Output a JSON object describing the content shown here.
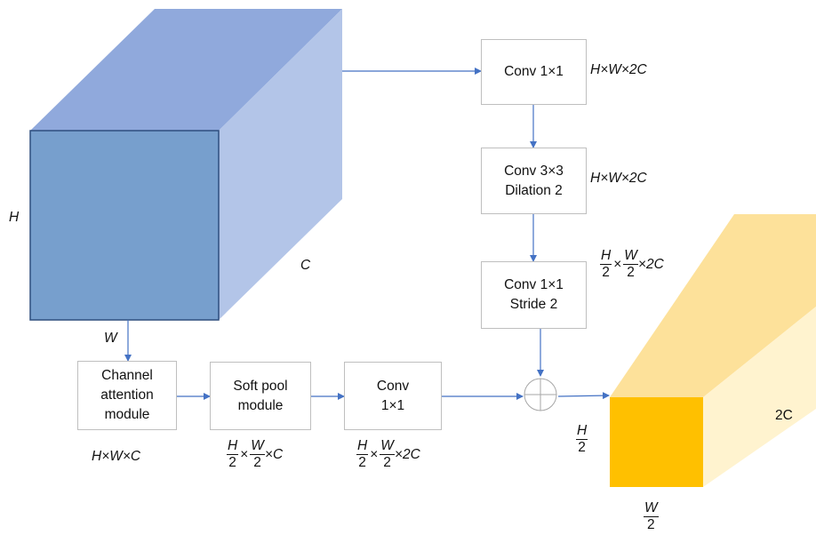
{
  "boxes": {
    "conv1x1_top": [
      "Conv 1×1"
    ],
    "conv3x3": [
      "Conv 3×3",
      "Dilation 2"
    ],
    "conv1x1_stride": [
      "Conv 1×1",
      "Stride 2"
    ],
    "channel_attention": [
      "Channel",
      "attention",
      "module"
    ],
    "soft_pool": [
      "Soft pool",
      "module"
    ],
    "conv_bottom": [
      "Conv",
      "1×1"
    ]
  },
  "labels": {
    "input_h": "H",
    "input_w": "W",
    "input_c": "C",
    "dim_conv1": "H×W×2C",
    "dim_conv3": "H×W×2C",
    "dim_ca": "H×W×C",
    "out_c": "2C",
    "frac_h": "H",
    "frac_w": "W",
    "frac_den": "2",
    "frac_tail_c": "×C",
    "frac_tail_2c": "×2C",
    "times": "×"
  },
  "colors": {
    "input_front": "#779fcd",
    "input_top": "#90a9dc",
    "input_side": "#b3c5e8",
    "input_edge": "#2f4f7f",
    "output_front": "#ffc000",
    "output_top": "#fde19a",
    "output_side": "#fff3cf",
    "arrow": "#4472c4",
    "box_border": "#bfbfbf"
  }
}
